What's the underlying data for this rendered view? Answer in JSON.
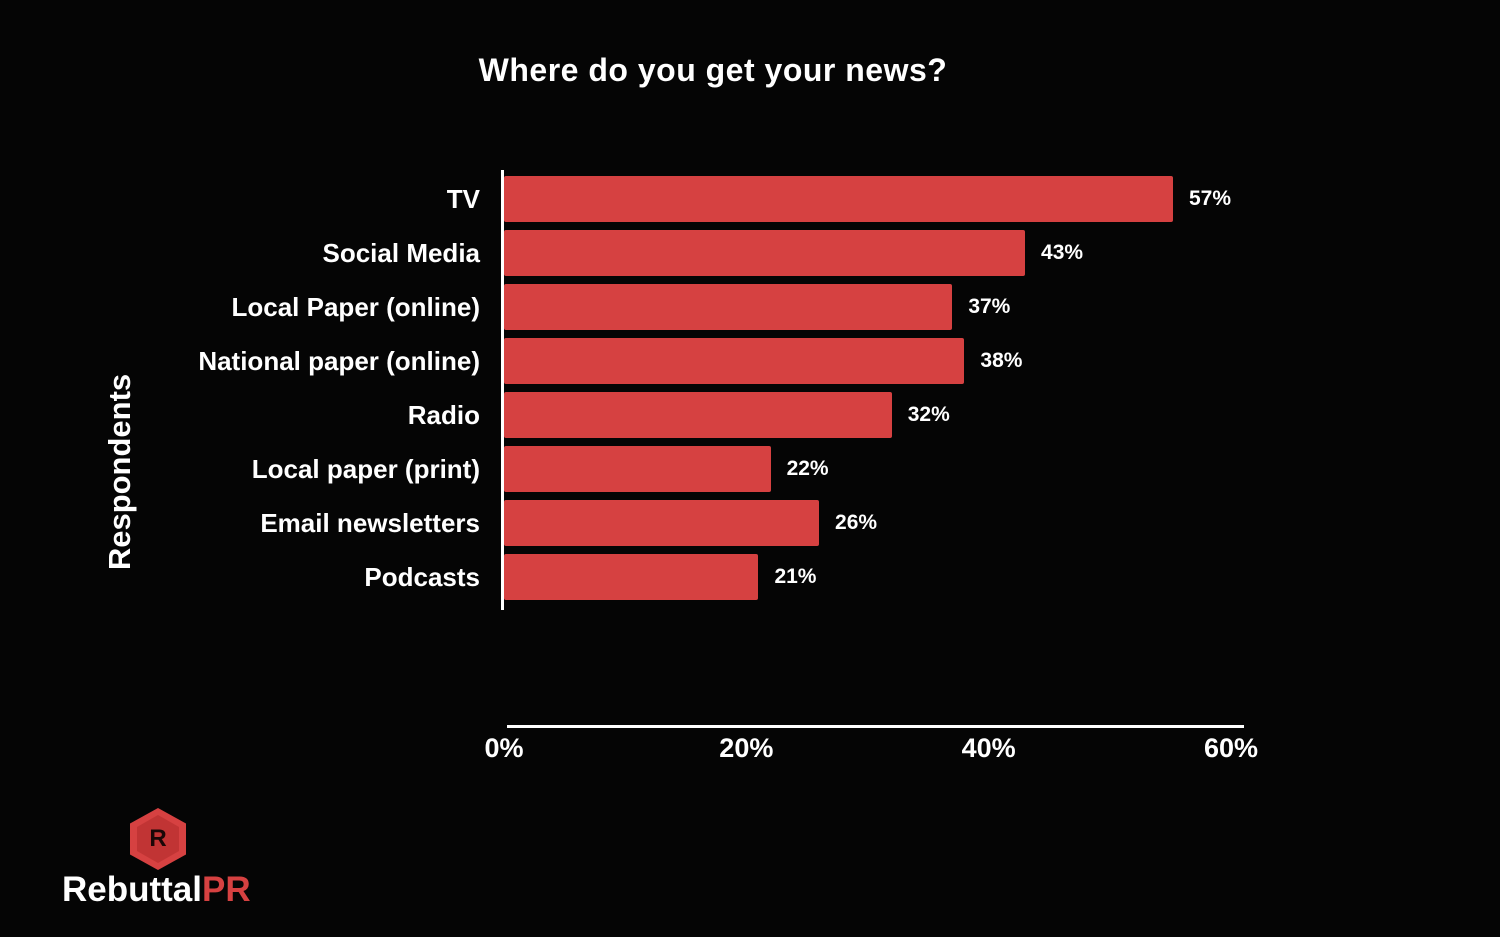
{
  "title": "Where do you get your news?",
  "chart_data": {
    "type": "bar",
    "orientation": "horizontal",
    "title": "Where do you get your news?",
    "ylabel": "Respondents",
    "xlabel": "",
    "categories": [
      "TV",
      "Social Media",
      "Local Paper (online)",
      "National paper (online)",
      "Radio",
      "Local paper (print)",
      "Email newsletters",
      "Podcasts"
    ],
    "values": [
      57,
      43,
      37,
      38,
      32,
      22,
      26,
      21
    ],
    "value_labels": [
      "57%",
      "43%",
      "37%",
      "38%",
      "32%",
      "22%",
      "26%",
      "21%"
    ],
    "xlim": [
      0,
      60
    ],
    "x_ticks": [
      0,
      20,
      40,
      60
    ],
    "x_tick_labels": [
      "0%",
      "20%",
      "40%",
      "60%"
    ],
    "grid": false,
    "legend": "none",
    "bar_color": "#d64141",
    "background_color": "#050505",
    "text_color": "#ffffff"
  },
  "branding": {
    "logo_letter": "R",
    "logo_text_white": "Rebuttal",
    "logo_text_red": "PR",
    "logo_red": "#d64141"
  }
}
